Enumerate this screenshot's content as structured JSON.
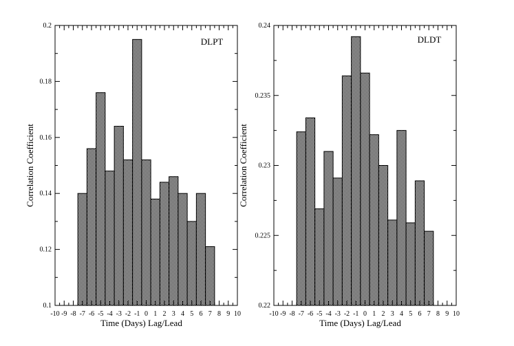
{
  "chart_data": [
    {
      "type": "bar",
      "title": "DLPT",
      "xlabel": "Time (Days) Lag/Lead",
      "ylabel": "Correlation Coefficient",
      "xlim": [
        -10,
        10
      ],
      "ylim": [
        0.1,
        0.2
      ],
      "xticks": [
        -10,
        -9,
        -8,
        -7,
        -6,
        -5,
        -4,
        -3,
        -2,
        -1,
        0,
        1,
        2,
        3,
        4,
        5,
        6,
        7,
        8,
        9,
        10
      ],
      "yticks": [
        "0.1",
        "0.12",
        "0.14",
        "0.16",
        "0.18",
        "0.2"
      ],
      "yticks_values": [
        0.1,
        0.12,
        0.14,
        0.16,
        0.18,
        0.2
      ],
      "x": [
        -7,
        -6,
        -5,
        -4,
        -3,
        -2,
        -1,
        0,
        1,
        2,
        3,
        4,
        5,
        6,
        7
      ],
      "values": [
        0.14,
        0.156,
        0.176,
        0.148,
        0.164,
        0.152,
        0.195,
        0.152,
        0.138,
        0.144,
        0.146,
        0.14,
        0.13,
        0.14,
        0.121
      ],
      "grid": false,
      "fill_pattern": "dense-checker"
    },
    {
      "type": "bar",
      "title": "DLDT",
      "xlabel": "Time (Days) Lag/Lead",
      "ylabel": "Correlation Coefficient",
      "xlim": [
        -10,
        10
      ],
      "ylim": [
        0.22,
        0.24
      ],
      "xticks": [
        -10,
        -9,
        -8,
        -7,
        -6,
        -5,
        -4,
        -3,
        -2,
        -1,
        0,
        1,
        2,
        3,
        4,
        5,
        6,
        7,
        8,
        9,
        10
      ],
      "yticks": [
        "0.22",
        "0.225",
        "0.23",
        "0.235",
        "0.24"
      ],
      "yticks_values": [
        0.22,
        0.225,
        0.23,
        0.235,
        0.24
      ],
      "x": [
        -7,
        -6,
        -5,
        -4,
        -3,
        -2,
        -1,
        0,
        1,
        2,
        3,
        4,
        5,
        6,
        7
      ],
      "values": [
        0.2324,
        0.2334,
        0.2269,
        0.231,
        0.2291,
        0.2364,
        0.2392,
        0.2366,
        0.2322,
        0.23,
        0.2261,
        0.2325,
        0.2259,
        0.2289,
        0.2253
      ],
      "grid": false,
      "fill_pattern": "dense-checker"
    }
  ]
}
